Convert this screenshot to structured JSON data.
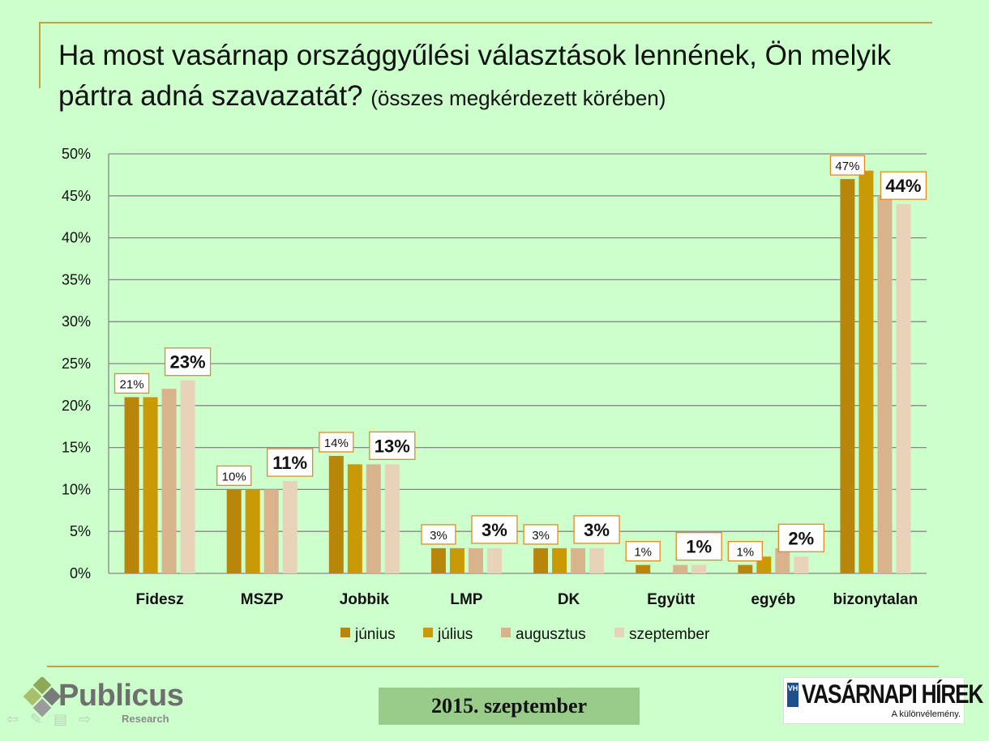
{
  "title": {
    "main": "Ha most vasárnap országgyűlési választások lennének, Ön melyik pártra adná szavazatát?",
    "sub": "(összes megkérdezett körében)"
  },
  "chart_data": {
    "type": "bar",
    "categories": [
      "Fidesz",
      "MSZP",
      "Jobbik",
      "LMP",
      "DK",
      "Együtt",
      "egyéb",
      "bizonytalan"
    ],
    "series": [
      {
        "name": "június",
        "color": "#b8860b",
        "values": [
          21,
          10,
          14,
          3,
          3,
          1,
          1,
          47
        ]
      },
      {
        "name": "július",
        "color": "#c99a06",
        "values": [
          21,
          10,
          13,
          3,
          3,
          0,
          2,
          48
        ]
      },
      {
        "name": "augusztus",
        "color": "#d9b38c",
        "values": [
          22,
          10,
          13,
          3,
          3,
          1,
          3,
          45
        ]
      },
      {
        "name": "szeptember",
        "color": "#e8d2b8",
        "values": [
          23,
          11,
          13,
          3,
          3,
          1,
          2,
          44
        ]
      }
    ],
    "labels_first": [
      "21%",
      "10%",
      "14%",
      "3%",
      "3%",
      "1%",
      "1%",
      "47%"
    ],
    "labels_last": [
      "23%",
      "11%",
      "13%",
      "3%",
      "3%",
      "1%",
      "2%",
      "44%"
    ],
    "y_ticks": [
      "0%",
      "5%",
      "10%",
      "15%",
      "20%",
      "25%",
      "30%",
      "35%",
      "40%",
      "45%",
      "50%"
    ],
    "ylim": [
      0,
      50
    ],
    "legend_position": "bottom",
    "grid": true
  },
  "footer": {
    "date": "2015. szeptember",
    "logo_name": "Publicus",
    "logo_sub": "Research",
    "partner_name": "VASÁRNAPI HÍREK",
    "partner_tagline": "A különvélemény.",
    "partner_mark": "VH"
  },
  "colors": {
    "background": "#ccffcc",
    "accent": "#c8a03c",
    "label_border": "#e38b1e"
  }
}
